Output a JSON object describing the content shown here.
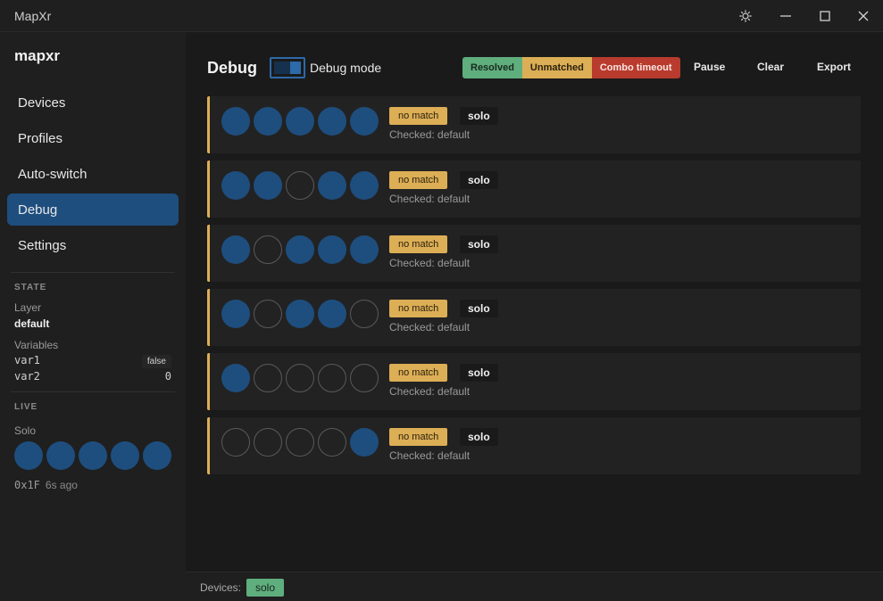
{
  "window": {
    "title": "MapXr",
    "controls": [
      "theme-icon",
      "minimize-icon",
      "maximize-icon",
      "close-icon"
    ]
  },
  "sidebar": {
    "brand": "mapxr",
    "nav": [
      {
        "label": "Devices",
        "active": false
      },
      {
        "label": "Profiles",
        "active": false
      },
      {
        "label": "Auto-switch",
        "active": false
      },
      {
        "label": "Debug",
        "active": true
      },
      {
        "label": "Settings",
        "active": false
      }
    ],
    "state": {
      "title": "STATE",
      "layer_label": "Layer",
      "layer_value": "default",
      "variables_label": "Variables",
      "variables": [
        {
          "name": "var1",
          "value": "false"
        },
        {
          "name": "var2",
          "value": "0"
        }
      ]
    },
    "live": {
      "title": "LIVE",
      "device_label": "Solo",
      "fingers": [
        true,
        true,
        true,
        true,
        true
      ],
      "code": "0x1F",
      "age": "6s ago"
    }
  },
  "main": {
    "heading": "Debug",
    "toggle_label": "Debug mode",
    "toggle_on": true,
    "legend": {
      "resolved": "Resolved",
      "unmatched": "Unmatched",
      "timeout": "Combo timeout"
    },
    "actions": {
      "pause": "Pause",
      "clear": "Clear",
      "export": "Export"
    },
    "events": [
      {
        "fingers": [
          true,
          true,
          true,
          true,
          true
        ],
        "status": "no match",
        "device": "solo",
        "checked": "Checked: default"
      },
      {
        "fingers": [
          true,
          true,
          false,
          true,
          true
        ],
        "status": "no match",
        "device": "solo",
        "checked": "Checked: default"
      },
      {
        "fingers": [
          true,
          false,
          true,
          true,
          true
        ],
        "status": "no match",
        "device": "solo",
        "checked": "Checked: default"
      },
      {
        "fingers": [
          true,
          false,
          true,
          true,
          false
        ],
        "status": "no match",
        "device": "solo",
        "checked": "Checked: default"
      },
      {
        "fingers": [
          true,
          false,
          false,
          false,
          false
        ],
        "status": "no match",
        "device": "solo",
        "checked": "Checked: default"
      },
      {
        "fingers": [
          false,
          false,
          false,
          false,
          true
        ],
        "status": "no match",
        "device": "solo",
        "checked": "Checked: default"
      }
    ]
  },
  "statusbar": {
    "label": "Devices:",
    "device": "solo"
  },
  "colors": {
    "accent": "#1e4e7e",
    "resolved": "#5fae7e",
    "unmatched": "#dcae55",
    "timeout": "#b83b2e"
  }
}
